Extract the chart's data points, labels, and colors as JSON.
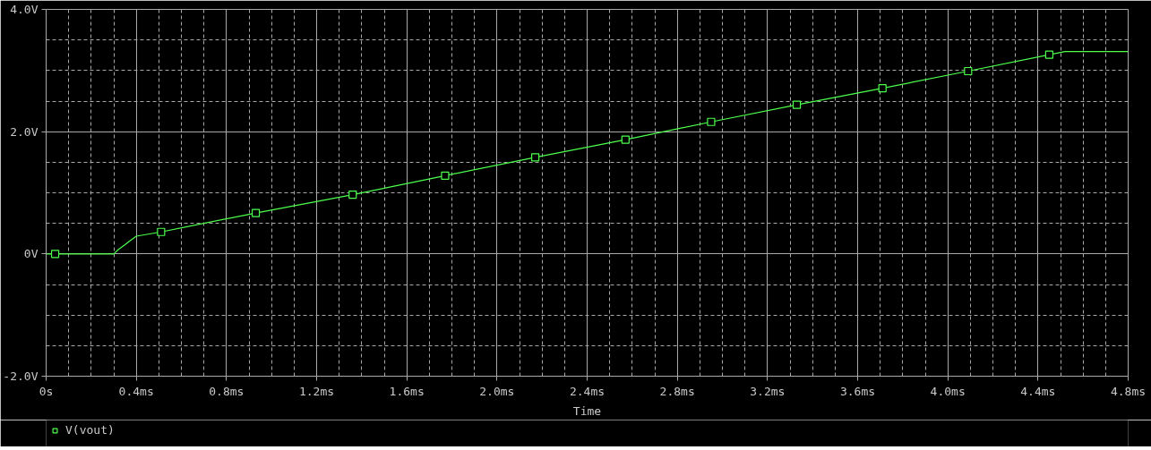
{
  "chart_data": {
    "type": "line",
    "xlabel": "Time",
    "xlim": [
      0,
      4.8
    ],
    "ylim": [
      -2,
      4
    ],
    "xticks": [
      {
        "value": 0,
        "label": "0s"
      },
      {
        "value": 0.1,
        "label": null
      },
      {
        "value": 0.2,
        "label": null
      },
      {
        "value": 0.3,
        "label": null
      },
      {
        "value": 0.4,
        "label": "0.4ms"
      },
      {
        "value": 0.5,
        "label": null
      },
      {
        "value": 0.6,
        "label": null
      },
      {
        "value": 0.7,
        "label": null
      },
      {
        "value": 0.8,
        "label": "0.8ms"
      },
      {
        "value": 0.9,
        "label": null
      },
      {
        "value": 1.0,
        "label": null
      },
      {
        "value": 1.1,
        "label": null
      },
      {
        "value": 1.2,
        "label": "1.2ms"
      },
      {
        "value": 1.3,
        "label": null
      },
      {
        "value": 1.4,
        "label": null
      },
      {
        "value": 1.5,
        "label": null
      },
      {
        "value": 1.6,
        "label": "1.6ms"
      },
      {
        "value": 1.7,
        "label": null
      },
      {
        "value": 1.8,
        "label": null
      },
      {
        "value": 1.9,
        "label": null
      },
      {
        "value": 2.0,
        "label": "2.0ms"
      },
      {
        "value": 2.1,
        "label": null
      },
      {
        "value": 2.2,
        "label": null
      },
      {
        "value": 2.3,
        "label": null
      },
      {
        "value": 2.4,
        "label": "2.4ms"
      },
      {
        "value": 2.5,
        "label": null
      },
      {
        "value": 2.6,
        "label": null
      },
      {
        "value": 2.7,
        "label": null
      },
      {
        "value": 2.8,
        "label": "2.8ms"
      },
      {
        "value": 2.9,
        "label": null
      },
      {
        "value": 3.0,
        "label": null
      },
      {
        "value": 3.1,
        "label": null
      },
      {
        "value": 3.2,
        "label": "3.2ms"
      },
      {
        "value": 3.3,
        "label": null
      },
      {
        "value": 3.4,
        "label": null
      },
      {
        "value": 3.5,
        "label": null
      },
      {
        "value": 3.6,
        "label": "3.6ms"
      },
      {
        "value": 3.7,
        "label": null
      },
      {
        "value": 3.8,
        "label": null
      },
      {
        "value": 3.9,
        "label": null
      },
      {
        "value": 4.0,
        "label": "4.0ms"
      },
      {
        "value": 4.1,
        "label": null
      },
      {
        "value": 4.2,
        "label": null
      },
      {
        "value": 4.3,
        "label": null
      },
      {
        "value": 4.4,
        "label": "4.4ms"
      },
      {
        "value": 4.5,
        "label": null
      },
      {
        "value": 4.6,
        "label": null
      },
      {
        "value": 4.7,
        "label": null
      },
      {
        "value": 4.8,
        "label": "4.8ms"
      }
    ],
    "yticks": [
      {
        "value": -2,
        "label": "-2.0V"
      },
      {
        "value": -1.5,
        "label": null
      },
      {
        "value": -1,
        "label": null
      },
      {
        "value": -0.5,
        "label": null
      },
      {
        "value": 0,
        "label": "0V"
      },
      {
        "value": 0.5,
        "label": null
      },
      {
        "value": 1,
        "label": null
      },
      {
        "value": 1.5,
        "label": null
      },
      {
        "value": 2,
        "label": "2.0V"
      },
      {
        "value": 2.5,
        "label": null
      },
      {
        "value": 3,
        "label": null
      },
      {
        "value": 3.5,
        "label": null
      },
      {
        "value": 4,
        "label": "4.0V"
      }
    ],
    "grid": true,
    "legend": "bottom left",
    "series": [
      {
        "color": "#4cff4c",
        "x": [
          0,
          0.3,
          0.32,
          0.35,
          0.37,
          0.4,
          0.51,
          0.93,
          1.36,
          1.77,
          2.17,
          2.57,
          2.95,
          3.33,
          3.71,
          4.09,
          4.45,
          4.52,
          4.8
        ],
        "values": [
          0,
          0,
          0.07,
          0.15,
          0.21,
          0.29,
          0.36,
          0.67,
          0.97,
          1.28,
          1.58,
          1.87,
          2.16,
          2.44,
          2.71,
          2.99,
          3.26,
          3.31,
          3.31
        ]
      },
      {
        "name": "V(vout)",
        "type": "scatter",
        "marker": "square",
        "color": "#4cff4c",
        "x": [
          0.04,
          0.51,
          0.93,
          1.36,
          1.77,
          2.17,
          2.57,
          2.95,
          3.33,
          3.71,
          4.09,
          4.45
        ],
        "values": [
          0,
          0.36,
          0.67,
          0.97,
          1.28,
          1.58,
          1.87,
          2.16,
          2.44,
          2.71,
          2.99,
          3.26
        ]
      }
    ]
  }
}
